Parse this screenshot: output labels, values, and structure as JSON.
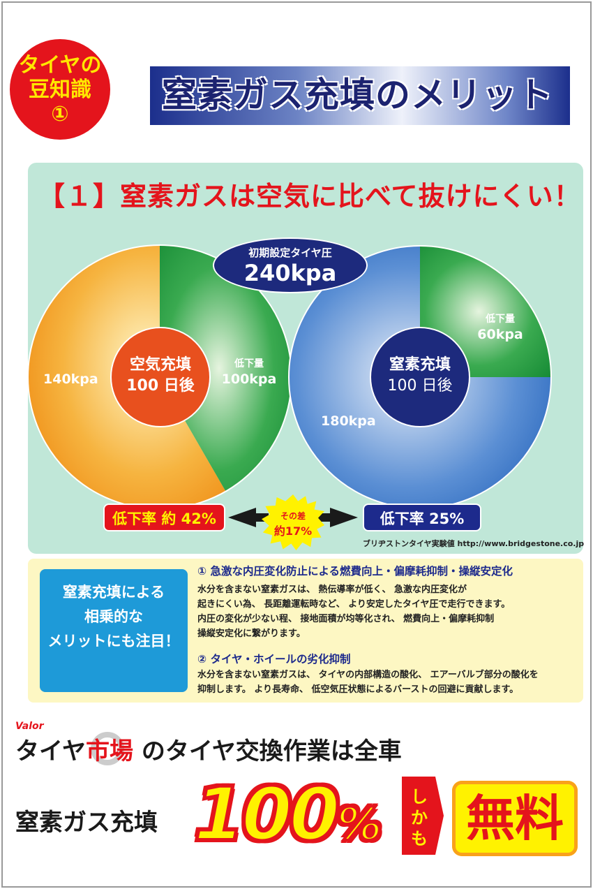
{
  "badge": {
    "lines": [
      "タイヤの",
      "豆知識",
      "①"
    ]
  },
  "title": "窒素ガス充填のメリット",
  "section1": {
    "heading": "【１】窒素ガスは空気に比べて抜けにくい！",
    "initial_pressure": {
      "label": "初期設定タイヤ圧",
      "value": "240kpa"
    },
    "air": {
      "center_line1": "空気充填",
      "center_line2": "100 日後",
      "remaining": "140kpa",
      "drop_label": "低下量",
      "drop_value": "100kpa",
      "rate": "低下率 約 42%"
    },
    "nitrogen": {
      "center_line1": "窒素充填",
      "center_line2": "100 日後",
      "remaining": "180kpa",
      "drop_label": "低下量",
      "drop_value": "60kpa",
      "rate": "低下率 25%"
    },
    "difference": {
      "line1": "その差",
      "line2": "約17%"
    },
    "source": "ブリヂストンタイヤ実験値 http://www.bridgestone.co.jp"
  },
  "chart_data": [
    {
      "type": "pie",
      "categories": [
        "140kpa",
        "低下量 100kpa"
      ],
      "values": [
        140,
        100
      ],
      "colors": [
        "#f39a1e",
        "#1f9a3c"
      ]
    },
    {
      "type": "pie",
      "categories": [
        "180kpa",
        "低下量 60kpa"
      ],
      "values": [
        180,
        60
      ],
      "colors": [
        "#2f72c4",
        "#1f9a3c"
      ]
    }
  ],
  "section2": {
    "box": [
      "窒素充填による",
      "相乗的な",
      "メリットにも注目！"
    ],
    "point1": {
      "title": "① 急激な内圧変化防止による燃費向上・偏摩耗抑制・操縦安定化",
      "lines": [
        "水分を含まない窒素ガスは、 熱伝導率が低く、 急激な内圧変化が",
        "起きにくい為、 長距離運転時など、 より安定したタイヤ圧で走行できます。",
        "内圧の変化が少ない程、 接地面積が均等化され、 燃費向上・偏摩耗抑制",
        "操縦安定化に繋がります。"
      ]
    },
    "point2": {
      "title": "② タイヤ・ホイールの劣化抑制",
      "lines": [
        "水分を含まない窒素ガスは、 タイヤの内部構造の酸化、 エアーバルブ部分の酸化を",
        "抑制します。 より長寿命、 低空気圧状態によるバーストの回避に貢献します。"
      ]
    }
  },
  "footer": {
    "logo_small": "Valor",
    "brand_black": "タイヤ",
    "brand_red": "市場",
    "line1_rest": "のタイヤ交換作業は全車",
    "line2": "窒素ガス充填",
    "big_number": "100",
    "big_percent": "%",
    "shika": [
      "し",
      "か",
      "も"
    ],
    "free": "無料"
  }
}
